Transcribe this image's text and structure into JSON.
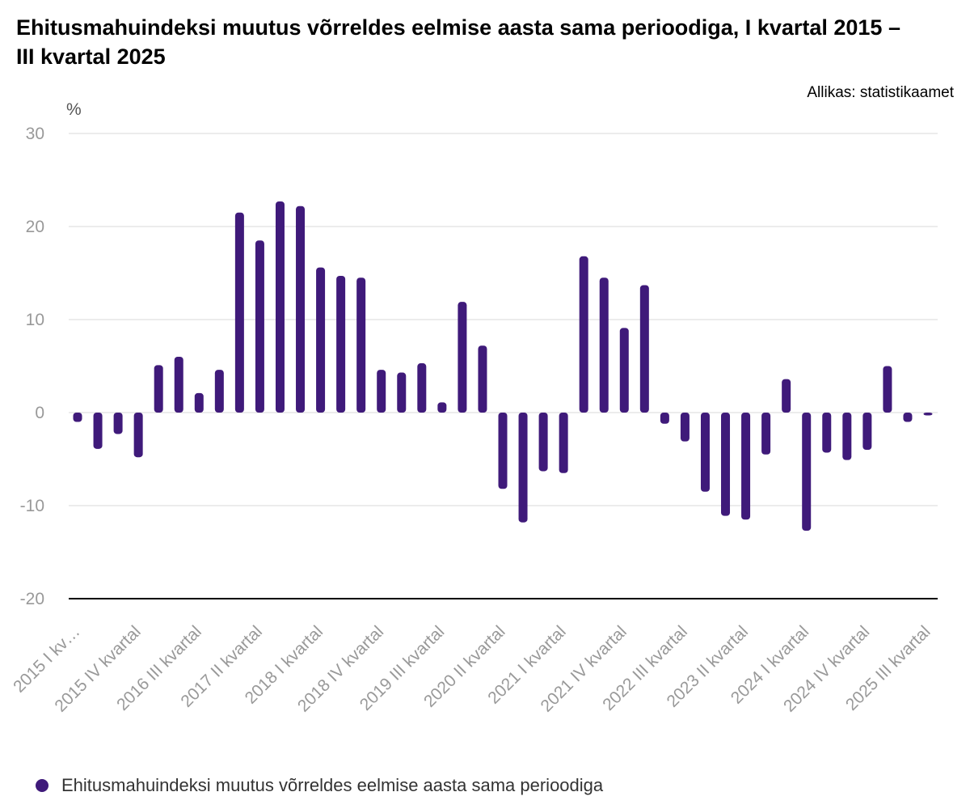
{
  "chart_data": {
    "type": "bar",
    "title": "Ehitusmahuindeksi muutus võrreldes eelmise aasta sama perioodiga, I kvartal 2015 – III kvartal 2025",
    "source": "Allikas: statistikaamet",
    "ylabel": "%",
    "ylim": [
      -20,
      30
    ],
    "yticks": [
      30,
      20,
      10,
      0,
      -10,
      -20
    ],
    "grid": true,
    "color": "#3f1a7a",
    "legend_position": "bottom-left",
    "categories": [
      "2015 I kvartal",
      "2015 II kvartal",
      "2015 III kvartal",
      "2015 IV kvartal",
      "2016 I kvartal",
      "2016 II kvartal",
      "2016 III kvartal",
      "2016 IV kvartal",
      "2017 I kvartal",
      "2017 II kvartal",
      "2017 III kvartal",
      "2017 IV kvartal",
      "2018 I kvartal",
      "2018 II kvartal",
      "2018 III kvartal",
      "2018 IV kvartal",
      "2019 I kvartal",
      "2019 II kvartal",
      "2019 III kvartal",
      "2019 IV kvartal",
      "2020 I kvartal",
      "2020 II kvartal",
      "2020 III kvartal",
      "2020 IV kvartal",
      "2021 I kvartal",
      "2021 II kvartal",
      "2021 III kvartal",
      "2021 IV kvartal",
      "2022 I kvartal",
      "2022 II kvartal",
      "2022 III kvartal",
      "2022 IV kvartal",
      "2023 I kvartal",
      "2023 II kvartal",
      "2023 III kvartal",
      "2023 IV kvartal",
      "2024 I kvartal",
      "2024 II kvartal",
      "2024 III kvartal",
      "2024 IV kvartal",
      "2025 I kvartal",
      "2025 II kvartal",
      "2025 III kvartal"
    ],
    "xtick_labels": [
      "2015 I kv…",
      "2015 IV kvartal",
      "2016 III kvartal",
      "2017 II kvartal",
      "2018 I kvartal",
      "2018 IV kvartal",
      "2019 III kvartal",
      "2020 II kvartal",
      "2021 I kvartal",
      "2021 IV kvartal",
      "2022 III kvartal",
      "2023 II kvartal",
      "2024 I kvartal",
      "2024 IV kvartal",
      "2025 III kvartal"
    ],
    "series": [
      {
        "name": "Ehitusmahuindeksi muutus võrreldes eelmise aasta sama perioodiga",
        "values": [
          -1.0,
          -3.9,
          -2.3,
          -4.8,
          5.1,
          6.0,
          2.1,
          4.6,
          21.5,
          18.5,
          22.7,
          22.2,
          15.6,
          14.7,
          14.5,
          4.6,
          4.3,
          5.3,
          1.1,
          11.9,
          7.2,
          -8.2,
          -11.8,
          -6.3,
          -6.5,
          16.8,
          14.5,
          9.1,
          13.7,
          -1.2,
          -3.1,
          -8.5,
          -11.1,
          -11.5,
          -4.5,
          3.6,
          -12.7,
          -4.3,
          -5.1,
          -4.0,
          5.0,
          -1.0,
          -0.3
        ]
      }
    ]
  }
}
